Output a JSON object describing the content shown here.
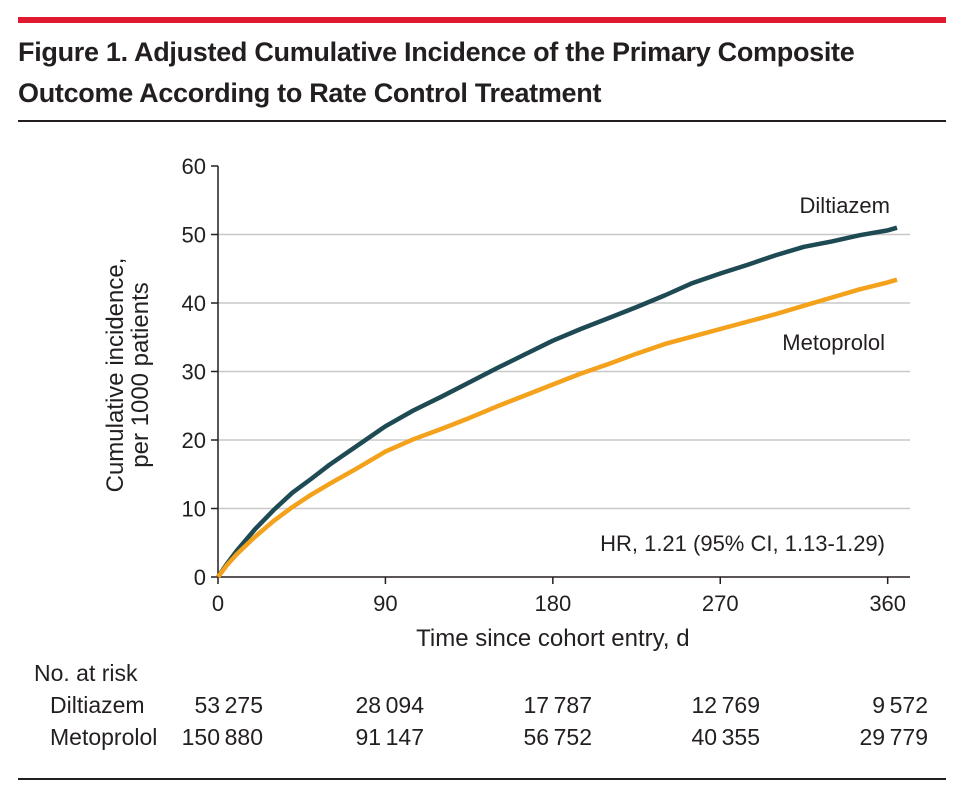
{
  "theme": {
    "accent_bar": "#e0192f",
    "rule": "#231f20",
    "grid": "#c8c8c8",
    "text": "#231f20"
  },
  "chart_data": {
    "type": "line",
    "title": "Figure 1. Adjusted Cumulative Incidence of the Primary Composite Outcome According to Rate Control Treatment",
    "xlabel": "Time since cohort entry, d",
    "ylabel_lines": [
      "Cumulative incidence,",
      "per 1000 patients"
    ],
    "xlim": [
      0,
      372
    ],
    "ylim": [
      0,
      60
    ],
    "xticks": [
      0,
      90,
      180,
      270,
      360
    ],
    "yticks": [
      0,
      10,
      20,
      30,
      40,
      50,
      60
    ],
    "grid": true,
    "series": [
      {
        "name": "Diltiazem",
        "color": "#1e4a54",
        "x": [
          0,
          5,
          10,
          15,
          20,
          30,
          40,
          50,
          60,
          75,
          90,
          105,
          120,
          135,
          150,
          165,
          180,
          195,
          210,
          225,
          240,
          255,
          270,
          285,
          300,
          315,
          330,
          345,
          360,
          365
        ],
        "y": [
          0,
          2.0,
          3.8,
          5.4,
          7.0,
          9.8,
          12.3,
          14.3,
          16.4,
          19.2,
          22.0,
          24.3,
          26.3,
          28.4,
          30.5,
          32.5,
          34.5,
          36.2,
          37.8,
          39.4,
          41.1,
          42.9,
          44.3,
          45.6,
          47.0,
          48.2,
          49.0,
          49.9,
          50.6,
          51.0
        ]
      },
      {
        "name": "Metoprolol",
        "color": "#f4a11c",
        "x": [
          0,
          5,
          10,
          15,
          20,
          30,
          40,
          50,
          60,
          75,
          90,
          105,
          120,
          135,
          150,
          165,
          180,
          195,
          210,
          225,
          240,
          255,
          270,
          285,
          300,
          315,
          330,
          345,
          360,
          365
        ],
        "y": [
          0,
          1.8,
          3.3,
          4.6,
          5.9,
          8.2,
          10.2,
          12.0,
          13.6,
          15.9,
          18.3,
          20.1,
          21.6,
          23.2,
          24.9,
          26.5,
          28.1,
          29.7,
          31.1,
          32.6,
          34.0,
          35.1,
          36.2,
          37.3,
          38.4,
          39.6,
          40.8,
          42.0,
          43.0,
          43.4
        ]
      }
    ],
    "annotations": [
      {
        "text": "HR, 1.21 (95% CI, 1.13-1.29)"
      }
    ],
    "at_risk": {
      "heading": "No. at risk",
      "x": [
        0,
        90,
        180,
        270,
        360
      ],
      "rows": [
        {
          "label": "Diltiazem",
          "values": [
            "53 275",
            "28 094",
            "17 787",
            "12 769",
            "9 572"
          ]
        },
        {
          "label": "Metoprolol",
          "values": [
            "150 880",
            "91 147",
            "56 752",
            "40 355",
            "29 779"
          ]
        }
      ]
    }
  }
}
